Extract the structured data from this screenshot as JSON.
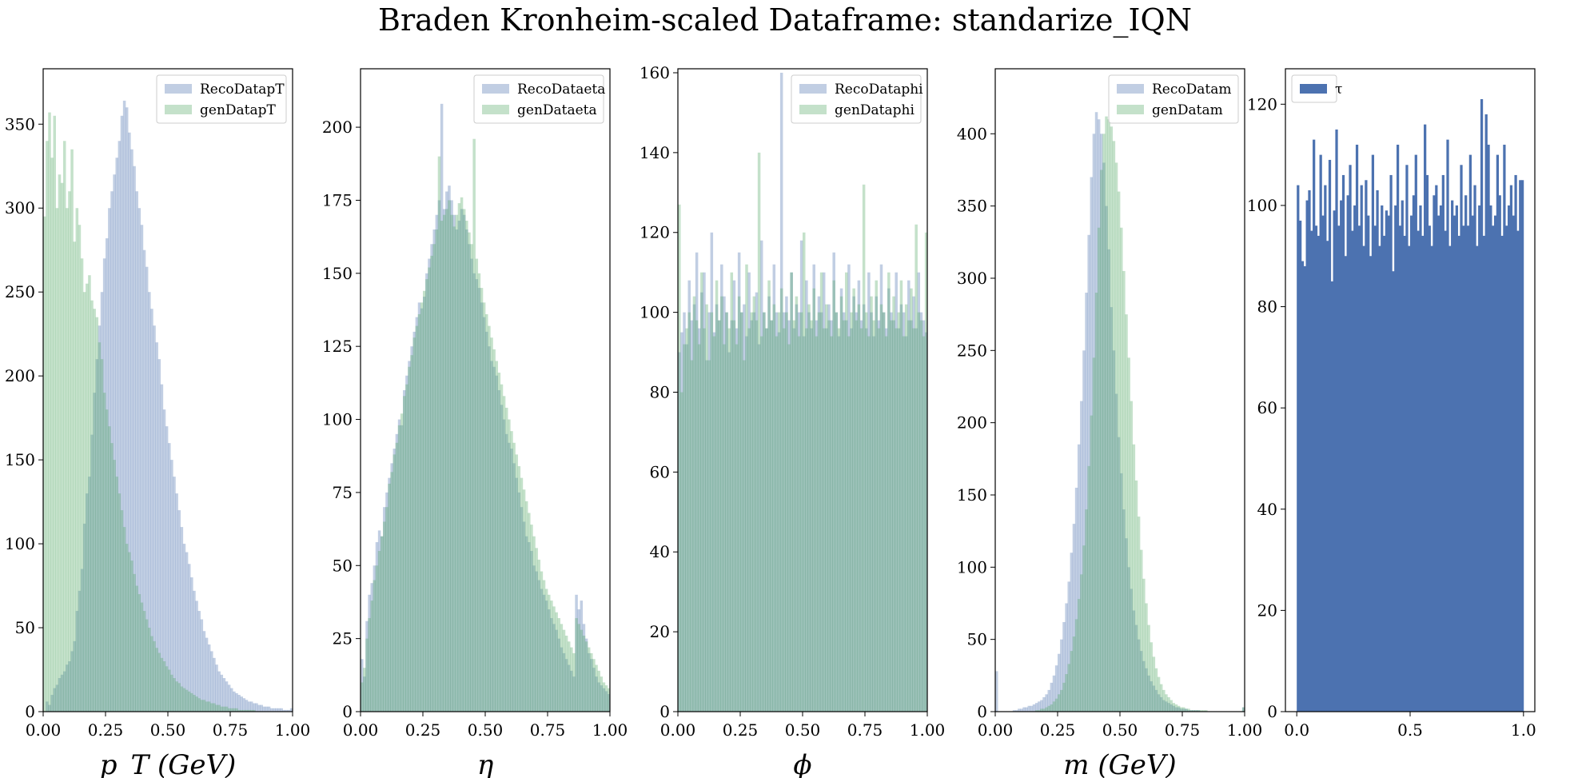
{
  "figure": {
    "title": "Braden Kronheim-scaled Dataframe: standarize_IQN"
  },
  "colors": {
    "reco": "#4c72b0",
    "gen": "#55a868",
    "tau": "#4c72b0"
  },
  "chart_data": [
    {
      "type": "histogram",
      "xlabel": "p_T (GeV)",
      "xlim": [
        0,
        1
      ],
      "ylim": [
        0,
        383
      ],
      "xticks": [
        "0.00",
        "0.25",
        "0.50",
        "0.75",
        "1.00"
      ],
      "yticks": [
        0,
        50,
        100,
        150,
        200,
        250,
        300,
        350
      ],
      "legend": "top-right",
      "series": [
        {
          "name": "RecoDatapT",
          "color": "#4c72b0",
          "alpha": 0.35,
          "values": [
            0,
            6,
            4,
            10,
            14,
            16,
            20,
            22,
            24,
            28,
            30,
            36,
            42,
            60,
            72,
            85,
            112,
            130,
            140,
            165,
            190,
            210,
            230,
            250,
            270,
            282,
            300,
            310,
            320,
            330,
            340,
            355,
            364,
            360,
            345,
            335,
            325,
            310,
            300,
            290,
            275,
            265,
            250,
            240,
            230,
            220,
            210,
            195,
            180,
            170,
            160,
            150,
            140,
            130,
            120,
            110,
            100,
            95,
            88,
            80,
            72,
            66,
            60,
            55,
            48,
            44,
            40,
            36,
            32,
            28,
            24,
            22,
            20,
            18,
            16,
            14,
            12,
            11,
            10,
            9,
            8,
            7,
            6,
            6,
            5,
            5,
            4,
            4,
            3,
            3,
            3,
            2,
            2,
            2,
            2,
            2,
            1,
            1,
            1,
            2
          ]
        },
        {
          "name": "genDatapT",
          "color": "#55a868",
          "alpha": 0.35,
          "values": [
            295,
            340,
            357,
            330,
            355,
            300,
            320,
            315,
            340,
            300,
            310,
            335,
            280,
            300,
            290,
            270,
            250,
            255,
            260,
            245,
            240,
            235,
            220,
            210,
            190,
            180,
            170,
            160,
            150,
            140,
            130,
            120,
            110,
            100,
            95,
            90,
            82,
            75,
            70,
            65,
            60,
            55,
            50,
            45,
            42,
            38,
            35,
            32,
            30,
            27,
            25,
            22,
            20,
            18,
            17,
            15,
            14,
            13,
            12,
            11,
            10,
            9,
            8,
            7,
            7,
            6,
            6,
            5,
            5,
            4,
            4,
            3,
            3,
            3,
            2,
            2,
            2,
            2,
            1,
            1,
            1,
            1,
            1,
            1,
            1,
            0,
            0,
            0,
            0,
            0,
            0,
            0,
            0,
            0,
            0,
            0,
            0,
            0,
            0,
            0
          ]
        }
      ]
    },
    {
      "type": "histogram",
      "xlabel": "η",
      "xlim": [
        0,
        1
      ],
      "ylim": [
        0,
        220
      ],
      "xticks": [
        "0.00",
        "0.25",
        "0.50",
        "0.75",
        "1.00"
      ],
      "yticks": [
        0,
        25,
        50,
        75,
        100,
        125,
        150,
        175,
        200
      ],
      "legend": "top-right",
      "series": [
        {
          "name": "RecoDataeta",
          "color": "#4c72b0",
          "alpha": 0.35,
          "values": [
            18,
            12,
            31,
            40,
            44,
            50,
            58,
            62,
            60,
            70,
            75,
            80,
            85,
            90,
            95,
            100,
            98,
            110,
            115,
            120,
            125,
            130,
            135,
            140,
            138,
            142,
            150,
            155,
            160,
            165,
            170,
            175,
            208,
            172,
            178,
            180,
            175,
            170,
            165,
            168,
            172,
            170,
            165,
            160,
            155,
            150,
            148,
            145,
            140,
            135,
            130,
            125,
            120,
            118,
            115,
            110,
            105,
            100,
            95,
            92,
            90,
            85,
            80,
            75,
            70,
            65,
            60,
            58,
            55,
            50,
            48,
            45,
            42,
            40,
            38,
            35,
            32,
            30,
            28,
            25,
            22,
            20,
            18,
            16,
            14,
            12,
            40,
            35,
            38,
            30,
            25,
            20,
            18,
            15,
            12,
            10,
            9,
            8,
            7,
            6
          ]
        },
        {
          "name": "genDataeta",
          "color": "#55a868",
          "alpha": 0.35,
          "values": [
            10,
            15,
            25,
            32,
            38,
            45,
            50,
            55,
            60,
            65,
            70,
            78,
            82,
            88,
            92,
            98,
            102,
            108,
            112,
            118,
            122,
            128,
            132,
            136,
            140,
            144,
            148,
            152,
            156,
            160,
            165,
            190,
            168,
            170,
            172,
            175,
            170,
            166,
            170,
            174,
            176,
            172,
            168,
            164,
            160,
            196,
            155,
            150,
            145,
            140,
            136,
            132,
            128,
            124,
            120,
            116,
            112,
            108,
            104,
            100,
            96,
            92,
            88,
            84,
            80,
            76,
            72,
            68,
            64,
            60,
            56,
            52,
            48,
            45,
            42,
            40,
            38,
            36,
            34,
            32,
            30,
            28,
            26,
            24,
            22,
            20,
            32,
            30,
            28,
            26,
            24,
            22,
            20,
            18,
            16,
            14,
            12,
            10,
            9,
            8
          ]
        }
      ]
    },
    {
      "type": "histogram",
      "xlabel": "ϕ",
      "xlim": [
        0,
        1
      ],
      "ylim": [
        0,
        161
      ],
      "xticks": [
        "0.00",
        "0.25",
        "0.50",
        "0.75",
        "1.00"
      ],
      "yticks": [
        0,
        20,
        40,
        60,
        80,
        100,
        120,
        140,
        160
      ],
      "legend": "top-right",
      "series": [
        {
          "name": "RecoDataphi",
          "color": "#4c72b0",
          "alpha": 0.35,
          "values": [
            90,
            95,
            100,
            92,
            108,
            98,
            102,
            115,
            96,
            105,
            110,
            88,
            100,
            120,
            95,
            102,
            98,
            112,
            104,
            100,
            90,
            98,
            108,
            96,
            115,
            100,
            102,
            94,
            110,
            98,
            100,
            105,
            92,
            118,
            100,
            96,
            104,
            98,
            112,
            100,
            95,
            160,
            100,
            104,
            98,
            110,
            96,
            102,
            100,
            118,
            94,
            108,
            100,
            96,
            112,
            98,
            104,
            100,
            110,
            96,
            102,
            98,
            115,
            100,
            94,
            106,
            100,
            98,
            112,
            96,
            104,
            100,
            108,
            98,
            102,
            96,
            110,
            100,
            94,
            104,
            98,
            112,
            100,
            96,
            106,
            100,
            98,
            110,
            96,
            102,
            100,
            94,
            108,
            98,
            104,
            96,
            110,
            100,
            98,
            95
          ]
        },
        {
          "name": "genDataphi",
          "color": "#55a868",
          "alpha": 0.35,
          "values": [
            127,
            80,
            92,
            96,
            100,
            88,
            104,
            98,
            92,
            110,
            96,
            102,
            88,
            100,
            94,
            108,
            98,
            104,
            92,
            100,
            96,
            110,
            98,
            92,
            104,
            100,
            88,
            112,
            96,
            100,
            104,
            98,
            140,
            94,
            100,
            96,
            108,
            98,
            102,
            94,
            100,
            106,
            96,
            100,
            92,
            110,
            98,
            104,
            94,
            100,
            120,
            96,
            102,
            98,
            106,
            94,
            100,
            110,
            96,
            102,
            98,
            94,
            108,
            100,
            96,
            104,
            98,
            110,
            94,
            100,
            106,
            98,
            102,
            96,
            132,
            100,
            94,
            104,
            98,
            108,
            96,
            102,
            100,
            94,
            110,
            98,
            104,
            96,
            100,
            108,
            94,
            102,
            98,
            106,
            96,
            122,
            100,
            98,
            94,
            120
          ]
        }
      ]
    },
    {
      "type": "histogram",
      "xlabel": "m (GeV)",
      "xlim": [
        0,
        1
      ],
      "ylim": [
        0,
        445
      ],
      "xticks": [
        "0.00",
        "0.25",
        "0.50",
        "0.75",
        "1.00"
      ],
      "yticks": [
        0,
        50,
        100,
        150,
        200,
        250,
        300,
        350,
        400
      ],
      "legend": "top-right",
      "series": [
        {
          "name": "RecoDatam",
          "color": "#4c72b0",
          "alpha": 0.35,
          "values": [
            28,
            0,
            0,
            0,
            0,
            0,
            0,
            1,
            1,
            2,
            2,
            3,
            3,
            4,
            4,
            5,
            6,
            7,
            8,
            10,
            12,
            15,
            20,
            25,
            32,
            40,
            50,
            62,
            75,
            90,
            110,
            130,
            155,
            185,
            215,
            250,
            290,
            330,
            370,
            400,
            415,
            410,
            400,
            380,
            350,
            320,
            280,
            250,
            220,
            190,
            165,
            140,
            120,
            100,
            85,
            70,
            60,
            50,
            42,
            35,
            30,
            25,
            21,
            18,
            15,
            12,
            10,
            8,
            7,
            6,
            5,
            4,
            3,
            3,
            2,
            2,
            2,
            1,
            1,
            1,
            1,
            1,
            0,
            0,
            0,
            0,
            0,
            0,
            0,
            0,
            0,
            0,
            0,
            0,
            0,
            0,
            0,
            0,
            0,
            3
          ]
        },
        {
          "name": "genDatam",
          "color": "#55a868",
          "alpha": 0.35,
          "values": [
            0,
            0,
            0,
            0,
            0,
            0,
            0,
            0,
            0,
            0,
            0,
            0,
            0,
            0,
            0,
            0,
            1,
            1,
            2,
            2,
            3,
            4,
            5,
            7,
            9,
            12,
            15,
            20,
            26,
            33,
            42,
            52,
            64,
            78,
            95,
            115,
            140,
            170,
            205,
            245,
            290,
            335,
            375,
            400,
            412,
            410,
            405,
            395,
            380,
            360,
            335,
            305,
            275,
            245,
            215,
            185,
            160,
            135,
            112,
            92,
            75,
            60,
            48,
            38,
            30,
            24,
            19,
            15,
            12,
            10,
            8,
            6,
            5,
            4,
            3,
            3,
            2,
            2,
            1,
            1,
            1,
            1,
            1,
            1,
            1,
            0,
            0,
            0,
            0,
            0,
            0,
            0,
            0,
            0,
            0,
            0,
            0,
            0,
            0,
            3
          ]
        }
      ]
    },
    {
      "type": "histogram",
      "xlabel": "",
      "xlim": [
        -0.05,
        1.05
      ],
      "ylim": [
        0,
        127
      ],
      "xticks": [
        "0.0",
        "0.5",
        "1.0"
      ],
      "yticks": [
        0,
        20,
        40,
        60,
        80,
        100,
        120
      ],
      "legend": "top-left",
      "series": [
        {
          "name": "τ",
          "color": "#4c72b0",
          "alpha": 1.0,
          "values": [
            104,
            97,
            89,
            88,
            101,
            103,
            95,
            113,
            96,
            94,
            110,
            98,
            104,
            93,
            109,
            85,
            99,
            115,
            96,
            101,
            106,
            90,
            102,
            108,
            95,
            100,
            112,
            96,
            104,
            92,
            105,
            98,
            90,
            110,
            96,
            103,
            92,
            100,
            94,
            99,
            98,
            106,
            87,
            100,
            112,
            96,
            101,
            94,
            108,
            92,
            98,
            102,
            110,
            95,
            100,
            94,
            116,
            106,
            96,
            92,
            102,
            104,
            98,
            100,
            106,
            95,
            113,
            92,
            101,
            98,
            100,
            94,
            108,
            96,
            102,
            96,
            110,
            98,
            104,
            92,
            100,
            121,
            94,
            118,
            112,
            100,
            96,
            98,
            110,
            102,
            94,
            112,
            96,
            100,
            104,
            98,
            106,
            95,
            105,
            105
          ]
        }
      ]
    }
  ]
}
